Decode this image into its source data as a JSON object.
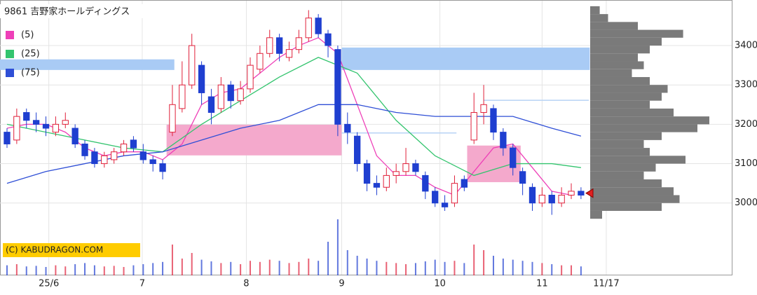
{
  "chart_data": {
    "type": "candlestick",
    "title": "9861 吉野家ホールディングス",
    "copyright": "(C) KABUDRAGON.COM",
    "xlim": [
      -0.72,
      59.8
    ],
    "xticks": [
      {
        "value": 4.3,
        "label": "25/6"
      },
      {
        "value": 13.9,
        "label": "7"
      },
      {
        "value": 24.6,
        "label": "8"
      },
      {
        "value": 34.4,
        "label": "9"
      },
      {
        "value": 44.5,
        "label": "10"
      },
      {
        "value": 55,
        "label": "11"
      },
      {
        "value": 61.6,
        "label": "11/17"
      }
    ],
    "ylim": [
      2955,
      3498
    ],
    "yticks": [
      3000,
      3100,
      3200,
      3300,
      3400
    ],
    "grid": true,
    "up_color": "#e0203a",
    "down_color": "#1f3fd0",
    "open": [
      3180,
      3160,
      3230,
      3210,
      3200,
      3180,
      3200,
      3190,
      3150,
      3130,
      3100,
      3110,
      3130,
      3160,
      3130,
      3110,
      3100,
      3180,
      3240,
      3300,
      3350,
      3270,
      3240,
      3300,
      3260,
      3290,
      3340,
      3380,
      3420,
      3370,
      3390,
      3420,
      3470,
      3430,
      3390,
      3200,
      3170,
      3100,
      3050,
      3040,
      3070,
      3080,
      3100,
      3070,
      3030,
      3000,
      3000,
      3060,
      3160,
      3230,
      3240,
      3180,
      3140,
      3080,
      3040,
      3000,
      3020,
      3000,
      3020,
      3030
    ],
    "high": [
      3190,
      3240,
      3240,
      3230,
      3220,
      3220,
      3230,
      3200,
      3160,
      3140,
      3130,
      3140,
      3160,
      3170,
      3150,
      3120,
      3110,
      3300,
      3360,
      3430,
      3360,
      3290,
      3320,
      3310,
      3310,
      3370,
      3400,
      3440,
      3430,
      3410,
      3440,
      3490,
      3480,
      3440,
      3400,
      3230,
      3180,
      3110,
      3070,
      3090,
      3100,
      3140,
      3110,
      3080,
      3040,
      3020,
      3070,
      3070,
      3280,
      3300,
      3250,
      3190,
      3150,
      3090,
      3050,
      3040,
      3030,
      3040,
      3050,
      3040
    ],
    "low": [
      3140,
      3150,
      3190,
      3180,
      3170,
      3170,
      3190,
      3140,
      3110,
      3090,
      3090,
      3100,
      3120,
      3130,
      3100,
      3080,
      3060,
      3170,
      3230,
      3290,
      3250,
      3200,
      3230,
      3240,
      3250,
      3280,
      3330,
      3370,
      3360,
      3360,
      3380,
      3410,
      3420,
      3370,
      3170,
      3150,
      3080,
      3030,
      3020,
      3030,
      3050,
      3070,
      3070,
      3010,
      2990,
      2980,
      2990,
      3030,
      3150,
      3200,
      3160,
      3120,
      3070,
      3020,
      2980,
      2990,
      2970,
      2990,
      3010,
      3010
    ],
    "close": [
      3150,
      3220,
      3210,
      3200,
      3190,
      3200,
      3210,
      3150,
      3120,
      3100,
      3120,
      3130,
      3150,
      3140,
      3110,
      3100,
      3080,
      3250,
      3300,
      3400,
      3280,
      3230,
      3300,
      3260,
      3290,
      3350,
      3380,
      3420,
      3380,
      3390,
      3420,
      3470,
      3430,
      3400,
      3200,
      3180,
      3100,
      3050,
      3040,
      3070,
      3080,
      3100,
      3080,
      3030,
      3000,
      2990,
      3050,
      3040,
      3230,
      3250,
      3180,
      3140,
      3090,
      3050,
      3000,
      3020,
      3000,
      3020,
      3030,
      3020
    ],
    "volume": [
      18,
      20,
      16,
      17,
      15,
      18,
      16,
      20,
      22,
      18,
      16,
      17,
      15,
      18,
      20,
      22,
      24,
      55,
      30,
      40,
      28,
      25,
      22,
      24,
      20,
      26,
      24,
      28,
      26,
      22,
      24,
      30,
      26,
      60,
      100,
      45,
      35,
      30,
      26,
      24,
      22,
      20,
      22,
      25,
      28,
      24,
      26,
      22,
      55,
      45,
      35,
      30,
      28,
      26,
      24,
      22,
      20,
      18,
      18,
      16
    ],
    "vlim": [
      0,
      100
    ],
    "series": [
      {
        "name": "(5)",
        "color": "#ee3fb8",
        "x": [
          0,
          2,
          4,
          6,
          8,
          10,
          12,
          14,
          16,
          18,
          20,
          22,
          24,
          26,
          28,
          30,
          32,
          34,
          36,
          38,
          40,
          42,
          44,
          46,
          48,
          50,
          52,
          54,
          56,
          58
        ],
        "values": [
          3190,
          3200,
          3200,
          3180,
          3140,
          3120,
          3130,
          3130,
          3110,
          3150,
          3250,
          3280,
          3290,
          3330,
          3370,
          3400,
          3420,
          3380,
          3250,
          3120,
          3070,
          3070,
          3040,
          3020,
          3080,
          3140,
          3150,
          3090,
          3030,
          3020
        ]
      },
      {
        "name": "(25)",
        "color": "#33c46e",
        "x": [
          0,
          4,
          8,
          12,
          16,
          20,
          24,
          28,
          32,
          36,
          40,
          44,
          48,
          52,
          56,
          59
        ],
        "values": [
          3200,
          3180,
          3160,
          3140,
          3130,
          3200,
          3260,
          3320,
          3370,
          3330,
          3210,
          3120,
          3070,
          3100,
          3100,
          3090
        ]
      },
      {
        "name": "(75)",
        "color": "#2f4fd6",
        "x": [
          0,
          4,
          8,
          12,
          16,
          20,
          24,
          28,
          32,
          36,
          40,
          44,
          48,
          52,
          56,
          59
        ],
        "values": [
          3050,
          3080,
          3100,
          3120,
          3130,
          3160,
          3190,
          3210,
          3250,
          3250,
          3230,
          3220,
          3220,
          3220,
          3190,
          3170
        ]
      }
    ],
    "zones": [
      {
        "x": [
          -0.72,
          17.2
        ],
        "y": [
          3338,
          3365
        ],
        "color": "#a9cbf5"
      },
      {
        "x": [
          34.4,
          59.9
        ],
        "y": [
          3338,
          3395
        ],
        "color": "#a9cbf5"
      },
      {
        "x": [
          16.4,
          34.4
        ],
        "y": [
          3121,
          3199
        ],
        "color": "#f4a9cc"
      },
      {
        "x": [
          47.3,
          52.8
        ],
        "y": [
          3053,
          3146
        ],
        "color": "#f4a9cc"
      }
    ],
    "levels": [
      {
        "x": [
          49,
          59.8
        ],
        "y": 3261,
        "color": "#b7d3f5"
      },
      {
        "x": [
          34.4,
          46.2
        ],
        "y": 3178,
        "color": "#b7d3f5"
      }
    ],
    "last_price": 3025,
    "profile_bins": [
      2960,
      2980,
      3000,
      3020,
      3040,
      3060,
      3080,
      3100,
      3120,
      3140,
      3160,
      3180,
      3200,
      3220,
      3240,
      3260,
      3280,
      3300,
      3320,
      3340,
      3360,
      3380,
      3400,
      3420,
      3440,
      3460,
      3480,
      3500
    ],
    "profile_counts": [
      10,
      60,
      75,
      70,
      60,
      45,
      55,
      80,
      50,
      45,
      60,
      90,
      100,
      70,
      50,
      60,
      65,
      50,
      35,
      45,
      40,
      50,
      60,
      78,
      40,
      15,
      8
    ],
    "profile_lim": [
      0,
      100
    ],
    "profile_color": "#7a7a7a"
  }
}
